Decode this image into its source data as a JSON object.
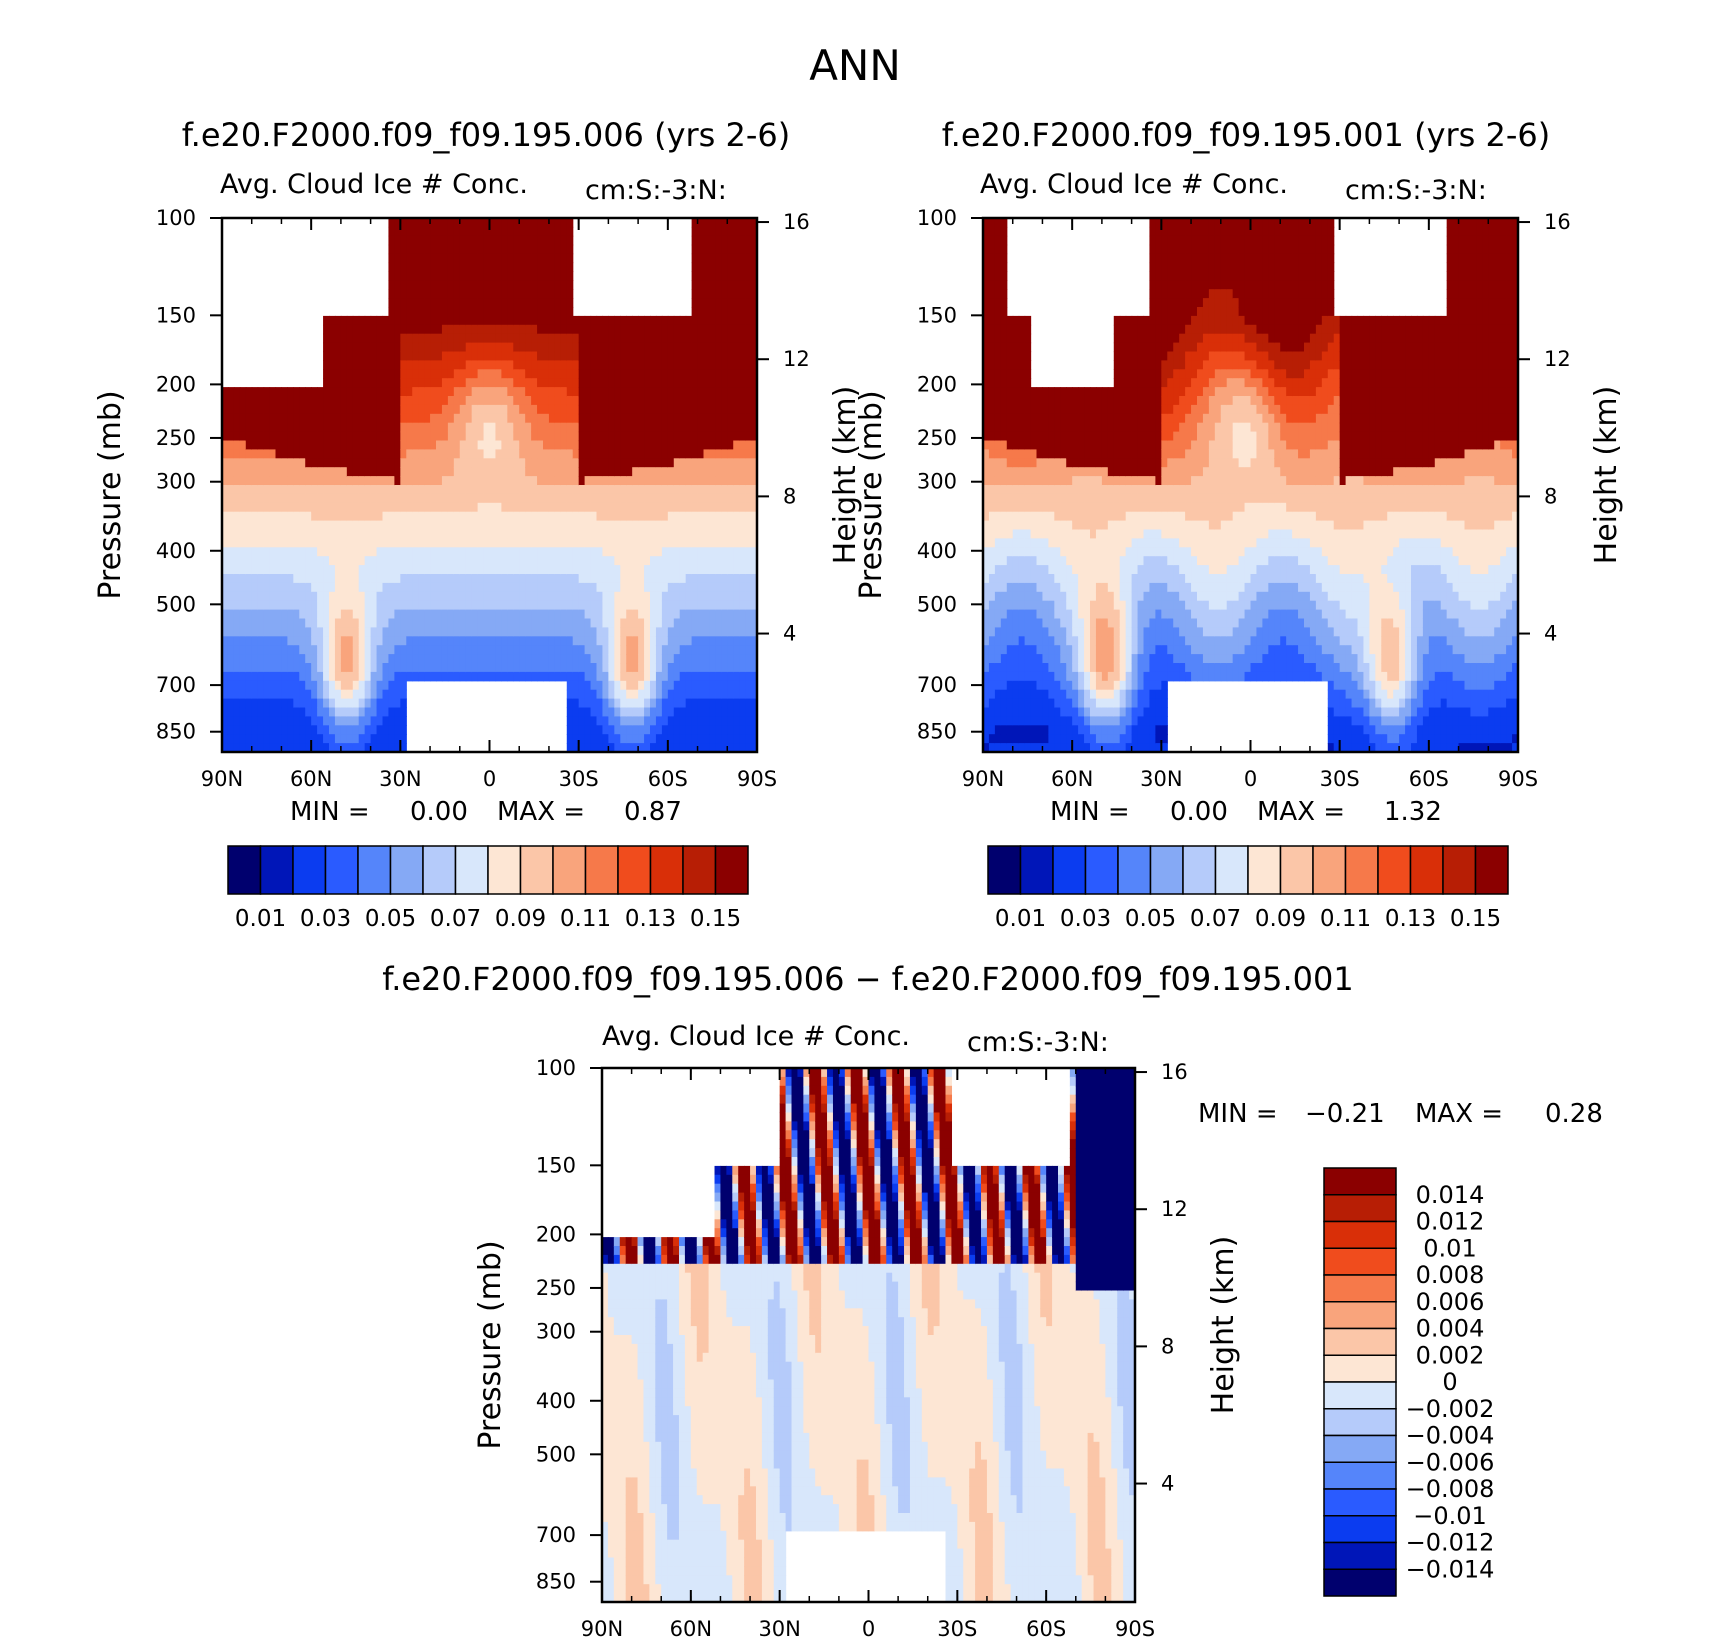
{
  "page_title": "ANN",
  "chart_data": [
    {
      "type": "heatmap",
      "panel": "test-case",
      "title": "f.e20.F2000.f09_f09.195.006 (yrs 2-6)",
      "subtitle_left": "Avg. Cloud Ice # Conc.",
      "subtitle_right": "cm:S:-3:N:",
      "xlabel": "",
      "ylabel": "Pressure (mb)",
      "ylabel_right": "Height (km)",
      "x_ticks": [
        "90N",
        "60N",
        "30N",
        "0",
        "30S",
        "60S",
        "90S"
      ],
      "y_ticks": [
        "100",
        "150",
        "200",
        "250",
        "300",
        "400",
        "500",
        "700",
        "850"
      ],
      "y_ticks_right": [
        "16",
        "12",
        "8",
        "4"
      ],
      "ylim": [
        850,
        100
      ],
      "min_label": "MIN =",
      "min_value": "0.00",
      "max_label": "MAX =",
      "max_value": "0.87",
      "colorbar_labels": [
        "0.01",
        "0.03",
        "0.05",
        "0.07",
        "0.09",
        "0.11",
        "0.13",
        "0.15"
      ],
      "colorbar_levels": [
        0.01,
        0.02,
        0.03,
        0.04,
        0.05,
        0.06,
        0.07,
        0.08,
        0.09,
        0.1,
        0.11,
        0.12,
        0.13,
        0.14,
        0.15
      ]
    },
    {
      "type": "heatmap",
      "panel": "control-case",
      "title": "f.e20.F2000.f09_f09.195.001 (yrs 2-6)",
      "subtitle_left": "Avg. Cloud Ice # Conc.",
      "subtitle_right": "cm:S:-3:N:",
      "xlabel": "",
      "ylabel": "Pressure (mb)",
      "ylabel_right": "Height (km)",
      "x_ticks": [
        "90N",
        "60N",
        "30N",
        "0",
        "30S",
        "60S",
        "90S"
      ],
      "y_ticks": [
        "100",
        "150",
        "200",
        "250",
        "300",
        "400",
        "500",
        "700",
        "850"
      ],
      "y_ticks_right": [
        "16",
        "12",
        "8",
        "4"
      ],
      "ylim": [
        850,
        100
      ],
      "min_label": "MIN =",
      "min_value": "0.00",
      "max_label": "MAX =",
      "max_value": "1.32",
      "colorbar_labels": [
        "0.01",
        "0.03",
        "0.05",
        "0.07",
        "0.09",
        "0.11",
        "0.13",
        "0.15"
      ],
      "colorbar_levels": [
        0.01,
        0.02,
        0.03,
        0.04,
        0.05,
        0.06,
        0.07,
        0.08,
        0.09,
        0.1,
        0.11,
        0.12,
        0.13,
        0.14,
        0.15
      ]
    },
    {
      "type": "heatmap",
      "panel": "difference",
      "title": "f.e20.F2000.f09_f09.195.006 − f.e20.F2000.f09_f09.195.001",
      "subtitle_left": "Avg. Cloud Ice # Conc.",
      "subtitle_right": "cm:S:-3:N:",
      "xlabel": "",
      "ylabel": "Pressure (mb)",
      "ylabel_right": "Height (km)",
      "x_ticks": [
        "90N",
        "60N",
        "30N",
        "0",
        "30S",
        "60S",
        "90S"
      ],
      "y_ticks": [
        "100",
        "150",
        "200",
        "250",
        "300",
        "400",
        "500",
        "700",
        "850"
      ],
      "y_ticks_right": [
        "16",
        "12",
        "8",
        "4"
      ],
      "ylim": [
        850,
        100
      ],
      "min_label": "MIN =",
      "min_value": "−0.21",
      "max_label": "MAX =",
      "max_value": "0.28",
      "colorbar_labels": [
        "0.014",
        "0.012",
        "0.01",
        "0.008",
        "0.006",
        "0.004",
        "0.002",
        "0",
        "−0.002",
        "−0.004",
        "−0.006",
        "−0.008",
        "−0.01",
        "−0.012",
        "−0.014"
      ],
      "colorbar_levels": [
        0.014,
        0.012,
        0.01,
        0.008,
        0.006,
        0.004,
        0.002,
        0,
        -0.002,
        -0.004,
        -0.006,
        -0.008,
        -0.01,
        -0.012,
        -0.014
      ]
    }
  ],
  "colors": {
    "seq_palette": [
      "#00006e",
      "#0016b8",
      "#0b3cf0",
      "#2a5bff",
      "#5585fa",
      "#85a9f5",
      "#b5cbfa",
      "#d8e7fb",
      "#fde6d4",
      "#fbc6a8",
      "#f9a47c",
      "#f6794a",
      "#f04c1d",
      "#d92f08",
      "#b71e05",
      "#8b0000"
    ],
    "diff_palette": [
      "#8b0000",
      "#b71e05",
      "#d92f08",
      "#f04c1d",
      "#f6794a",
      "#f9a47c",
      "#fbc6a8",
      "#fde6d4",
      "#d8e7fb",
      "#b5cbfa",
      "#85a9f5",
      "#5585fa",
      "#2a5bff",
      "#0b3cf0",
      "#0016b8",
      "#00006e"
    ],
    "missing": "#ffffff"
  }
}
